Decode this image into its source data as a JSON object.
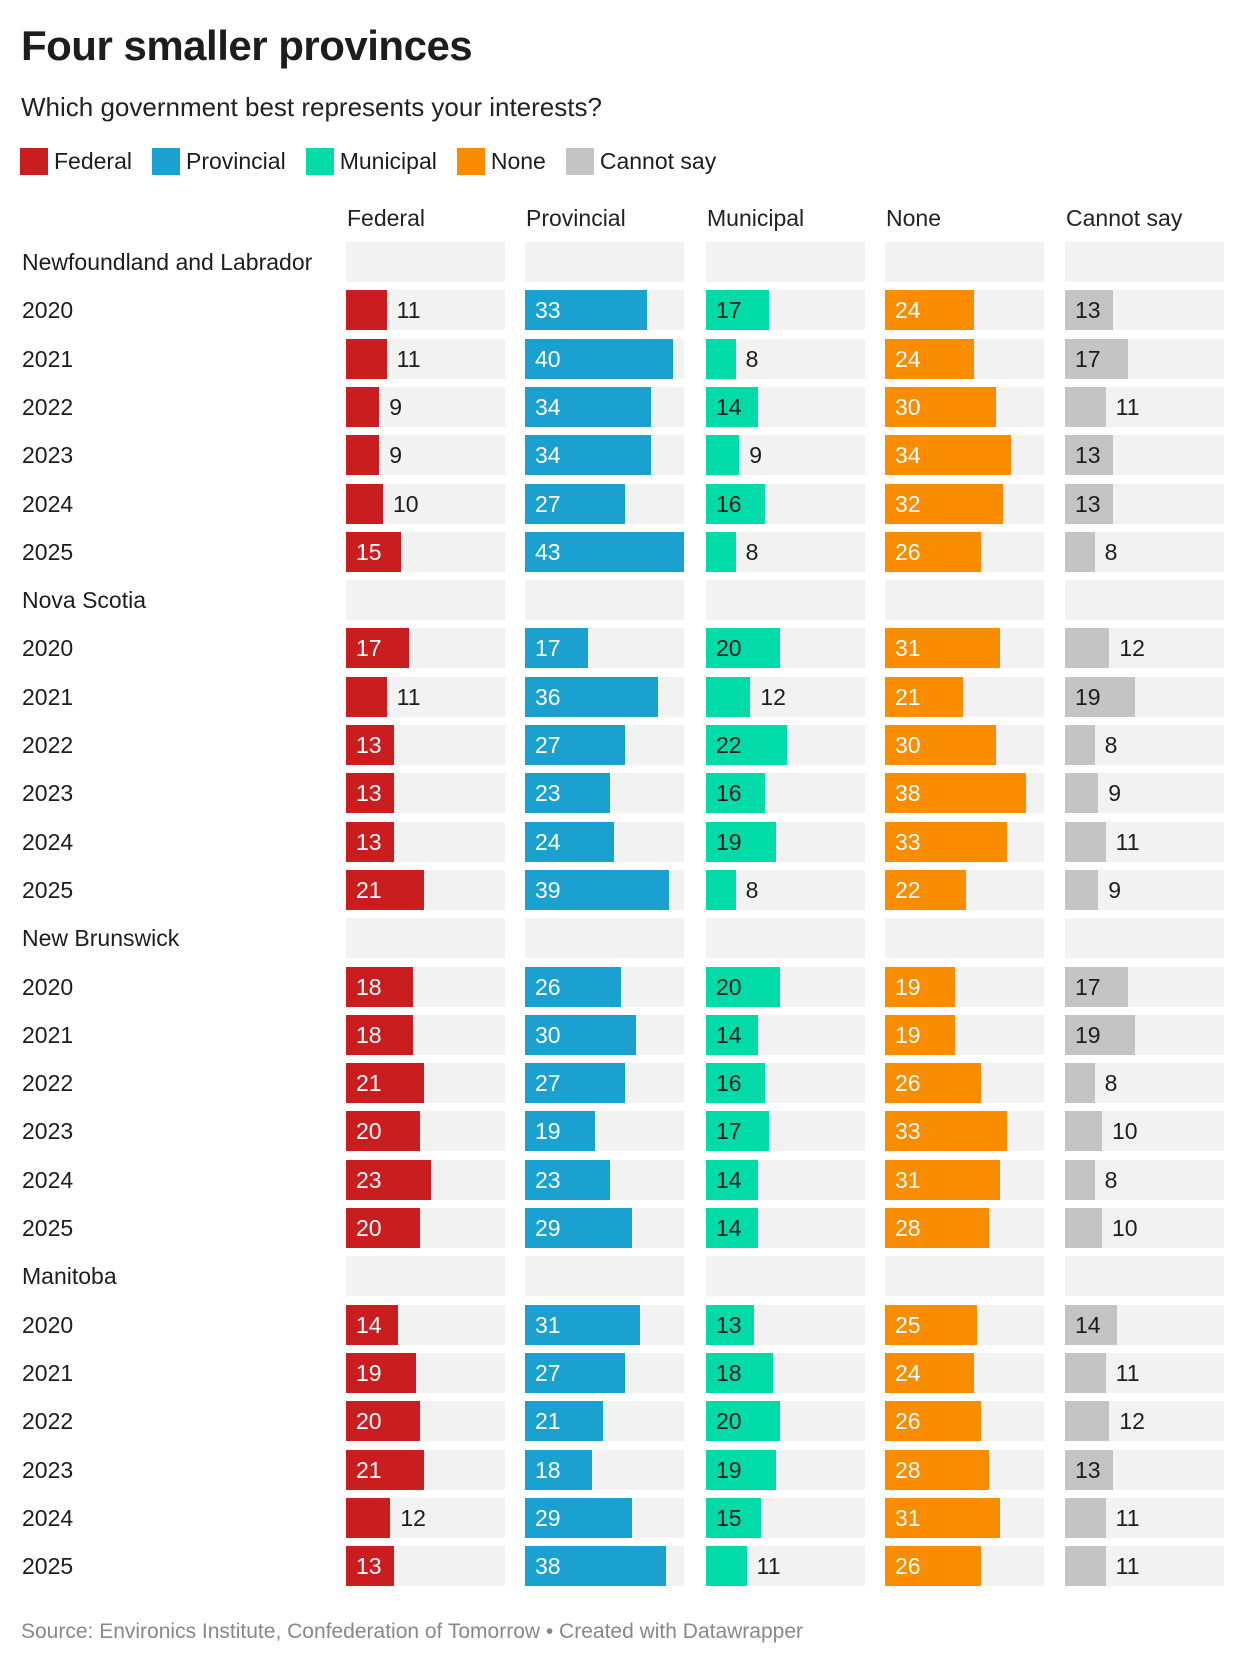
{
  "title": "Four smaller provinces",
  "subtitle": "Which government best represents your interests?",
  "source": "Source: Environics Institute, Confederation of Tomorrow • Created with Datawrapper",
  "chart_data": {
    "type": "bar",
    "title": "Four smaller provinces",
    "subtitle": "Which government best represents your interests?",
    "xlim": [
      0,
      43
    ],
    "series": [
      {
        "name": "Federal",
        "color": "#c91d1f",
        "text": "#ffffff"
      },
      {
        "name": "Provincial",
        "color": "#1aa1cf",
        "text": "#ffffff"
      },
      {
        "name": "Municipal",
        "color": "#00dba7",
        "text": "#1d1d1d"
      },
      {
        "name": "None",
        "color": "#fa8c00",
        "text": "#ffffff"
      },
      {
        "name": "Cannot say",
        "color": "#c4c4c4",
        "text": "#1d1d1d"
      }
    ],
    "groups": [
      {
        "name": "Newfoundland and Labrador",
        "rows": [
          {
            "year": "2020",
            "values": [
              11,
              33,
              17,
              24,
              13
            ]
          },
          {
            "year": "2021",
            "values": [
              11,
              40,
              8,
              24,
              17
            ]
          },
          {
            "year": "2022",
            "values": [
              9,
              34,
              14,
              30,
              11
            ]
          },
          {
            "year": "2023",
            "values": [
              9,
              34,
              9,
              34,
              13
            ]
          },
          {
            "year": "2024",
            "values": [
              10,
              27,
              16,
              32,
              13
            ]
          },
          {
            "year": "2025",
            "values": [
              15,
              43,
              8,
              26,
              8
            ]
          }
        ]
      },
      {
        "name": "Nova Scotia",
        "rows": [
          {
            "year": "2020",
            "values": [
              17,
              17,
              20,
              31,
              12
            ]
          },
          {
            "year": "2021",
            "values": [
              11,
              36,
              12,
              21,
              19
            ]
          },
          {
            "year": "2022",
            "values": [
              13,
              27,
              22,
              30,
              8
            ]
          },
          {
            "year": "2023",
            "values": [
              13,
              23,
              16,
              38,
              9
            ]
          },
          {
            "year": "2024",
            "values": [
              13,
              24,
              19,
              33,
              11
            ]
          },
          {
            "year": "2025",
            "values": [
              21,
              39,
              8,
              22,
              9
            ]
          }
        ]
      },
      {
        "name": "New Brunswick",
        "rows": [
          {
            "year": "2020",
            "values": [
              18,
              26,
              20,
              19,
              17
            ]
          },
          {
            "year": "2021",
            "values": [
              18,
              30,
              14,
              19,
              19
            ]
          },
          {
            "year": "2022",
            "values": [
              21,
              27,
              16,
              26,
              8
            ]
          },
          {
            "year": "2023",
            "values": [
              20,
              19,
              17,
              33,
              10
            ]
          },
          {
            "year": "2024",
            "values": [
              23,
              23,
              14,
              31,
              8
            ]
          },
          {
            "year": "2025",
            "values": [
              20,
              29,
              14,
              28,
              10
            ]
          }
        ]
      },
      {
        "name": "Manitoba",
        "rows": [
          {
            "year": "2020",
            "values": [
              14,
              31,
              13,
              25,
              14
            ]
          },
          {
            "year": "2021",
            "values": [
              19,
              27,
              18,
              24,
              11
            ]
          },
          {
            "year": "2022",
            "values": [
              20,
              21,
              20,
              26,
              12
            ]
          },
          {
            "year": "2023",
            "values": [
              21,
              18,
              19,
              28,
              13
            ]
          },
          {
            "year": "2024",
            "values": [
              12,
              29,
              15,
              31,
              11
            ]
          },
          {
            "year": "2025",
            "values": [
              13,
              38,
              11,
              26,
              11
            ]
          }
        ]
      }
    ]
  }
}
